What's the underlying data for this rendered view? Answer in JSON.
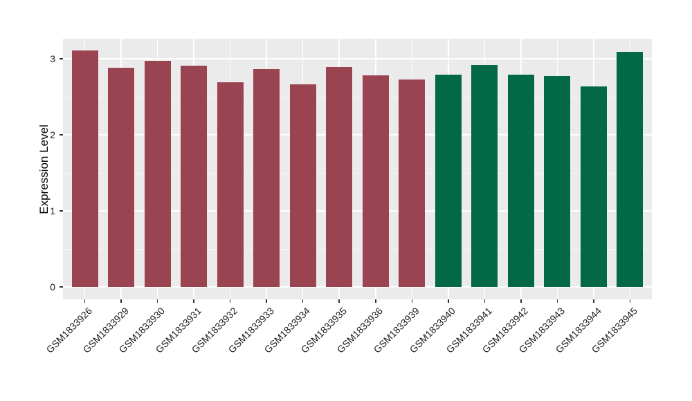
{
  "chart_data": {
    "type": "bar",
    "title": "",
    "xlabel": "",
    "ylabel": "Expression Level",
    "categories": [
      "GSM1833926",
      "GSM1833929",
      "GSM1833930",
      "GSM1833931",
      "GSM1833932",
      "GSM1833933",
      "GSM1833934",
      "GSM1833935",
      "GSM1833936",
      "GSM1833939",
      "GSM1833940",
      "GSM1833941",
      "GSM1833942",
      "GSM1833943",
      "GSM1833944",
      "GSM1833945"
    ],
    "values": [
      3.11,
      2.88,
      2.97,
      2.91,
      2.69,
      2.86,
      2.66,
      2.89,
      2.78,
      2.73,
      2.79,
      2.92,
      2.79,
      2.77,
      2.64,
      3.09
    ],
    "bar_colors": [
      "#9A4351",
      "#9A4351",
      "#9A4351",
      "#9A4351",
      "#9A4351",
      "#9A4351",
      "#9A4351",
      "#9A4351",
      "#9A4351",
      "#9A4351",
      "#026846",
      "#026846",
      "#026846",
      "#026846",
      "#026846",
      "#026846"
    ],
    "groups": [
      {
        "color": "#9A4351",
        "first": "GSM1833926",
        "last": "GSM1833939",
        "count": 10
      },
      {
        "color": "#026846",
        "first": "GSM1833940",
        "last": "GSM1833945",
        "count": 6
      }
    ],
    "yticks": [
      0,
      1,
      2,
      3
    ],
    "minor_gridlines": [
      0.5,
      1.5,
      2.5
    ],
    "ylim": [
      0,
      3.27
    ],
    "x_tick_rotation_deg": 45,
    "grid": true,
    "legend": false,
    "style": {
      "panel_background": "#EBEBEB",
      "gridline_color": "#FFFFFF",
      "tick_mark_color": "#333333",
      "tick_label_color": "#1A1A1A",
      "axis_title_color": "#000000"
    }
  }
}
